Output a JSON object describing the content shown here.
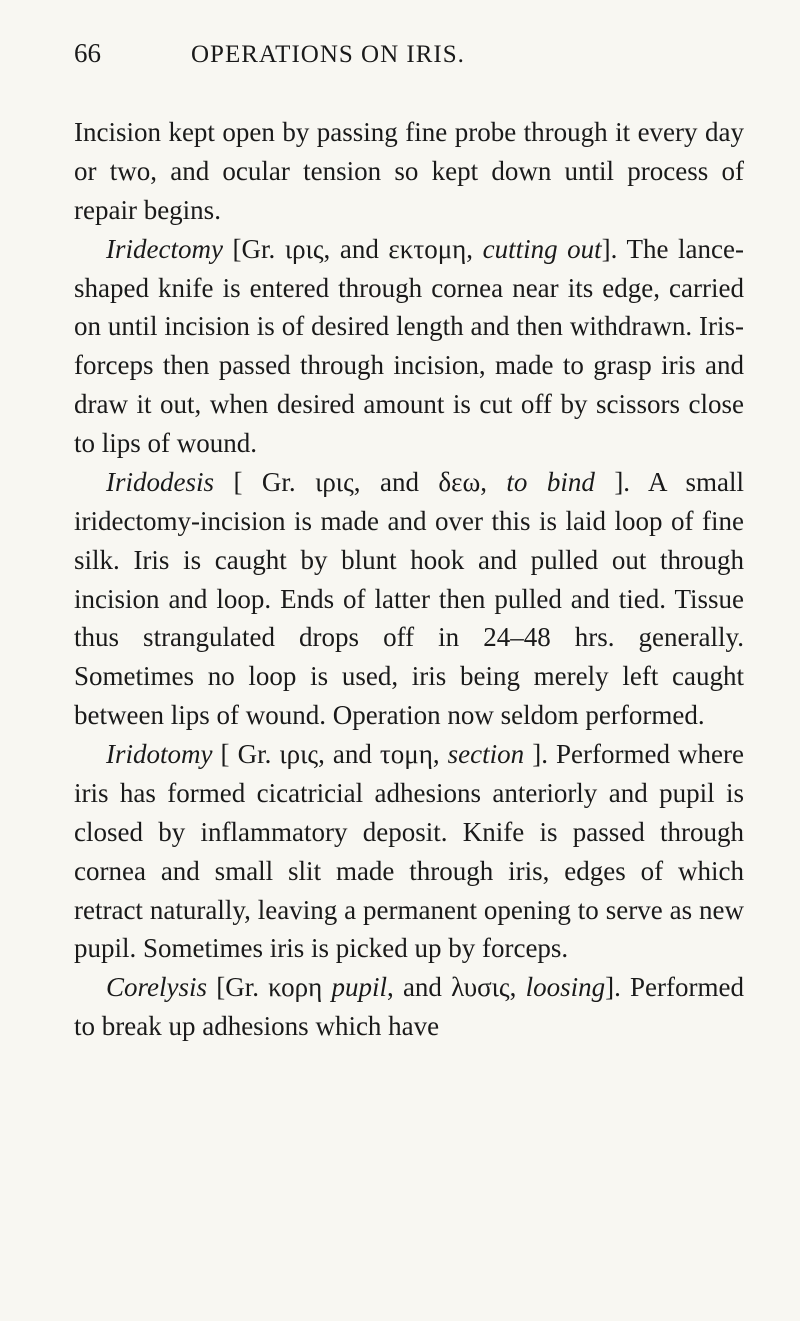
{
  "header": {
    "pageNumber": "66",
    "title": "OPERATIONS ON IRIS."
  },
  "paragraphs": {
    "p1": {
      "text": "Incision kept open by passing fine probe through it every day or two, and ocular ten­sion so kept down until process of repair begins."
    },
    "p2": {
      "term": "Iridectomy",
      "etym": " [Gr. ιρις, and εκτομη, ",
      "etymItalic": "cutting out",
      "etymClose": "]. ",
      "text": "The lance-shaped knife is entered through cornea near its edge, carried on until incision is of desired length and then withdrawn. Iris-forceps then passed through incision, made to grasp iris and draw it out, when de­sired amount is cut off by scissors close to lips of wound."
    },
    "p3": {
      "term": "Iridodesis",
      "etym": " [ Gr. ιρις, and δεω, ",
      "etymItalic": "to bind",
      "etymClose": " ]. ",
      "text": "A small iridectomy-incision is made and over this is laid loop of fine silk. Iris is caught by blunt hook and pulled out through incision and loop. Ends of latter then pulled and tied. Tissue thus strangulated drops off in 24–48 hrs. generally. Sometimes no loop is used, iris being merely left caught between lips of wound. Operation now seldom per­formed."
    },
    "p4": {
      "term": "Iridotomy",
      "etym": " [ Gr. ιρις, and τομη, ",
      "etymItalic": "section",
      "etymClose": " ]. ",
      "text": "Per­formed where iris has formed cicatricial adhe­sions anteriorly and pupil is closed by in­flammatory deposit. Knife is passed through cornea and small slit made through iris, edges of which retract naturally, leaving a permanent opening to serve as new pupil. Sometimes iris is picked up by forceps."
    },
    "p5": {
      "term": "Corelysis",
      "etym": " [Gr. κορη ",
      "etymItalic1": "pupil",
      "etymMid": ", and λυσις, ",
      "etymItalic2": "loosing",
      "etymClose": "]. ",
      "text": "Performed to break up adhesions which have"
    }
  },
  "colors": {
    "background": "#f8f7f2",
    "text": "#1a1a1a"
  },
  "typography": {
    "bodyFontSize": 27,
    "headerFontSize": 25,
    "lineHeight": 1.44,
    "fontFamily": "Georgia, Times New Roman, serif"
  }
}
